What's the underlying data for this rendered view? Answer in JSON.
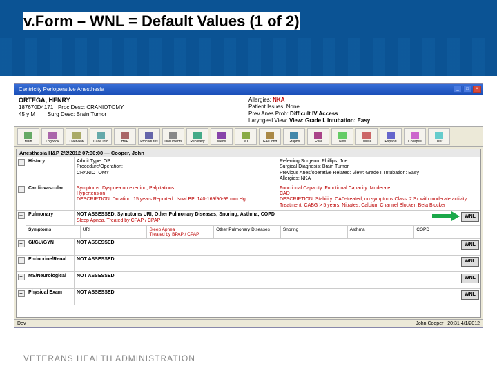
{
  "slide": {
    "title": "v.Form – WNL = Default Values (1 of 2)",
    "footer": "VETERANS HEALTH ADMINISTRATION"
  },
  "window": {
    "title": "Centricity Perioperative Anesthesia",
    "btn_min": "_",
    "btn_max": "□",
    "btn_close": "×"
  },
  "patient": {
    "name": "ORTEGA, HENRY",
    "mrn": "187670D4171",
    "age_sex": "45 y M",
    "proc_desc_label": "Proc Desc:",
    "proc_desc": "CRANIOTOMY",
    "surg_desc_label": "Surg Desc:",
    "surg_desc": "Brain Tumor",
    "allergies_label": "Allergies:",
    "allergies": "NKA",
    "issues_label": "Patient Issues:",
    "issues": "None",
    "prev_label": "Prev Anes Prob:",
    "prev": "Difficult IV Access",
    "laryng_label": "Laryngeal View:",
    "laryng": "View: Grade I.  Intubation: Easy"
  },
  "toolbar": {
    "items": [
      "Main",
      "Logbook",
      "Overview",
      "Case Info",
      "H&P",
      "Procedures",
      "Documents",
      "Recovery",
      "Meds",
      "I/O",
      "GA/Cond",
      "Graphs",
      "Eval",
      "New",
      "Delete",
      "Expand",
      "Collapse",
      "User"
    ]
  },
  "sectionHeader": "Anesthesia H&P 2/2/2012 07:30:00 — Cooper, John",
  "rows": {
    "history": {
      "label": "History",
      "pm": "+",
      "leftLines": [
        "Admit Type: OP",
        "Procedure/Operation:",
        "CRANIOTOMY"
      ],
      "rightLines": [
        "Referring Surgeon: Phillips, Joe",
        "Surgical Diagnosis: Brain Tumor",
        "Previous Anes/operative Related: View: Grade I.  Intubation: Easy",
        "Allergies: NKA"
      ]
    },
    "cardio": {
      "label": "Cardiovascular",
      "pm": "+",
      "leftLines": [
        "Symptoms: Dyspnea on exertion; Palpitations",
        "Hypertension",
        "DESCRIPTION: Duration: 15 years   Reported Usual BP: 140-169/90-99 mm Hg"
      ],
      "rightLines": [
        "Functional Capacity: Functional Capacity: Moderate",
        "CAD",
        "DESCRIPTION: Stability: CAD-treated, no symptoms    Class: 2 Sx with moderate activity    Treatment: CABG > 5 years; Nitrates; Calcium Channel Blocker; Beta Blocker"
      ]
    },
    "pulm": {
      "label": "Pulmonary",
      "pm": "–",
      "summary": "NOT ASSESSED; Symptoms URI; Other Pulmonary Diseases; Snoring; Asthma; COPD",
      "detail": "Sleep Apnea.   Treated by CPAP / CPAP",
      "wnl": "WNL",
      "symptoms": {
        "c0": "Symptoms",
        "c1": "URI",
        "c2a": "Sleep Apnea",
        "c2b": "Treated by BPAP / CPAP",
        "c3": "Other Pulmonary Diseases",
        "c4": "Snoring",
        "c5": "Asthma",
        "c6": "COPD"
      }
    },
    "gigugyn": {
      "label": "GI/GU/GYN",
      "pm": "+",
      "text": "NOT ASSESSED",
      "wnl": "WNL"
    },
    "endo": {
      "label": "Endocrine/Renal",
      "pm": "+",
      "text": "NOT ASSESSED",
      "wnl": "WNL"
    },
    "msneuro": {
      "label": "MS/Neurological",
      "pm": "+",
      "text": "NOT ASSESSED",
      "wnl": "WNL"
    },
    "physexam": {
      "label": "Physical Exam",
      "pm": "+",
      "text": "NOT ASSESSED",
      "wnl": "WNL"
    }
  },
  "status": {
    "dev": "Dev",
    "user": "John Cooper",
    "time": "20:31  4/1/2012"
  },
  "colors": {
    "header_bg": "#0b5394",
    "arrow": "#1ba84a",
    "red": "#b00000"
  }
}
